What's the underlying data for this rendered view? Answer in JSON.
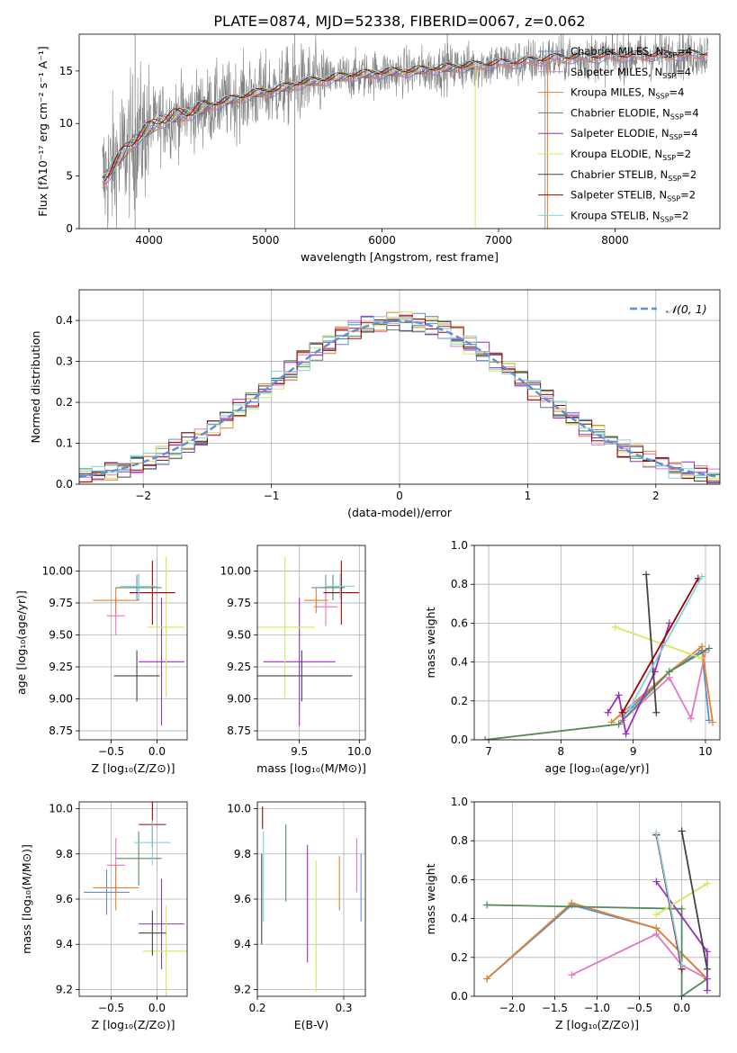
{
  "colors": {
    "Chabrier MILES": "#5f8ed6",
    "Salpeter MILES": "#e377c2",
    "Kroupa MILES": "#e0822e",
    "Chabrier ELODIE": "#548b5a",
    "Salpeter ELODIE": "#9b2fbf",
    "Kroupa ELODIE": "#d4e85a",
    "Chabrier STELIB": "#444444",
    "Salpeter STELIB": "#a00000",
    "Kroupa STELIB": "#7fd4e0",
    "data": "#808080",
    "normal": "#5f8ed6"
  },
  "chart_data": [
    {
      "id": "spectrum",
      "type": "line",
      "title": "PLATE=0874, MJD=52338, FIBERID=0067, z=0.062",
      "xlabel": "wavelength [Angstrom, rest frame]",
      "ylabel": "Flux [fλ10⁻¹⁷ erg cm⁻² s⁻¹ A⁻¹]",
      "xlim": [
        3400,
        8900
      ],
      "ylim": [
        0,
        18.5
      ],
      "xticks": [
        4000,
        5000,
        6000,
        7000,
        8000
      ],
      "yticks": [
        0,
        5,
        10,
        15
      ],
      "grid": false,
      "legend": "right",
      "continuum": {
        "x": [
          3600,
          3700,
          3800,
          3900,
          4000,
          4100,
          4200,
          4300,
          4500,
          4700,
          4900,
          5100,
          5300,
          5500,
          5700,
          6000,
          6300,
          6600,
          6900,
          7200,
          7500,
          7800,
          8100,
          8400,
          8800
        ],
        "y": [
          4.5,
          6.0,
          7.5,
          8.7,
          9.5,
          10.3,
          10.6,
          10.9,
          11.6,
          12.2,
          12.8,
          13.2,
          13.8,
          14.1,
          14.5,
          14.8,
          15.0,
          15.3,
          15.6,
          15.8,
          16.2,
          16.3,
          16.4,
          16.5,
          16.6
        ]
      },
      "series": [
        {
          "name": "Chabrier MILES",
          "nssp": "4",
          "xmax": 8800
        },
        {
          "name": "Salpeter MILES",
          "nssp": "4",
          "xmax": 8800
        },
        {
          "name": "Kroupa MILES",
          "nssp": "4",
          "xmax": 8800
        },
        {
          "name": "Chabrier ELODIE",
          "nssp": "4",
          "xmax": 6800
        },
        {
          "name": "Salpeter ELODIE",
          "nssp": "4",
          "xmax": 6800
        },
        {
          "name": "Kroupa ELODIE",
          "nssp": "2",
          "xmax": 6800
        },
        {
          "name": "Chabrier STELIB",
          "nssp": "2",
          "xmax": 8800
        },
        {
          "name": "Salpeter STELIB",
          "nssp": "2",
          "xmax": 8800
        },
        {
          "name": "Kroupa STELIB",
          "nssp": "2",
          "xmax": 8800
        }
      ]
    },
    {
      "id": "residuals",
      "type": "step",
      "xlabel": "(data-model)/error",
      "ylabel": "Normed distribution",
      "xlim": [
        -2.5,
        2.5
      ],
      "ylim": [
        0,
        0.475
      ],
      "xticks": [
        -2,
        -1,
        0,
        1,
        2
      ],
      "yticks": [
        0.0,
        0.1,
        0.2,
        0.3,
        0.4
      ],
      "grid": true,
      "legend": "top-right",
      "normal_label": "𝒩(0, 1)",
      "bin_width": 0.1
    },
    {
      "id": "age-vs-Z",
      "type": "errorbar",
      "xlabel": "Z [log₁₀(Z/Z⊙)]",
      "ylabel": "age  [log₁₀(age/yr)]",
      "xlim": [
        -0.85,
        0.33
      ],
      "ylim": [
        8.68,
        10.2
      ],
      "xticks": [
        -0.5,
        0.0
      ],
      "yticks": [
        8.75,
        9.0,
        9.25,
        9.5,
        9.75,
        10.0
      ],
      "grid": true,
      "points": [
        {
          "series": "Chabrier MILES",
          "x": -0.22,
          "xerr": 0.1,
          "y": 9.87,
          "yerr": 0.1
        },
        {
          "series": "Salpeter MILES",
          "x": -0.45,
          "xerr": 0.1,
          "y": 9.65,
          "yerr": 0.15
        },
        {
          "series": "Kroupa MILES",
          "x": -0.45,
          "xerr": 0.25,
          "y": 9.77,
          "yerr": 0.1
        },
        {
          "series": "Chabrier ELODIE",
          "x": -0.2,
          "xerr": 0.25,
          "y": 9.87,
          "yerr": 0.1
        },
        {
          "series": "Salpeter ELODIE",
          "x": 0.05,
          "xerr": 0.25,
          "y": 9.29,
          "yerr": 0.5
        },
        {
          "series": "Kroupa ELODIE",
          "x": 0.1,
          "xerr": 0.2,
          "y": 9.56,
          "yerr": 0.55
        },
        {
          "series": "Chabrier STELIB",
          "x": -0.22,
          "xerr": 0.25,
          "y": 9.18,
          "yerr": 0.2
        },
        {
          "series": "Salpeter STELIB",
          "x": -0.05,
          "xerr": 0.25,
          "y": 9.83,
          "yerr": 0.25
        },
        {
          "series": "Kroupa STELIB",
          "x": -0.2,
          "xerr": 0.2,
          "y": 9.88,
          "yerr": 0.1
        }
      ]
    },
    {
      "id": "age-vs-mass",
      "type": "errorbar",
      "xlabel": "mass [log₁₀(M/M⊙)]",
      "ylabel": "",
      "xlim": [
        9.15,
        10.05
      ],
      "ylim": [
        8.68,
        10.2
      ],
      "xticks": [
        9.5,
        10.0
      ],
      "yticks": [
        8.75,
        9.0,
        9.25,
        9.5,
        9.75,
        10.0
      ],
      "grid": true,
      "points": [
        {
          "series": "Chabrier MILES",
          "x": 9.72,
          "xerr": 0.12,
          "y": 9.87,
          "yerr": 0.1
        },
        {
          "series": "Salpeter MILES",
          "x": 9.72,
          "xerr": 0.1,
          "y": 9.72,
          "yerr": 0.15
        },
        {
          "series": "Kroupa MILES",
          "x": 9.64,
          "xerr": 0.1,
          "y": 9.77,
          "yerr": 0.1
        },
        {
          "series": "Chabrier ELODIE",
          "x": 9.78,
          "xerr": 0.1,
          "y": 9.87,
          "yerr": 0.1
        },
        {
          "series": "Salpeter ELODIE",
          "x": 9.5,
          "xerr": 0.3,
          "y": 9.29,
          "yerr": 0.5
        },
        {
          "series": "Kroupa ELODIE",
          "x": 9.38,
          "xerr": 0.25,
          "y": 9.56,
          "yerr": 0.55
        },
        {
          "series": "Chabrier STELIB",
          "x": 9.52,
          "xerr": 0.42,
          "y": 9.18,
          "yerr": 0.2
        },
        {
          "series": "Salpeter STELIB",
          "x": 9.85,
          "xerr": 0.15,
          "y": 9.83,
          "yerr": 0.25
        },
        {
          "series": "Kroupa STELIB",
          "x": 9.84,
          "xerr": 0.12,
          "y": 9.88,
          "yerr": 0.1
        }
      ]
    },
    {
      "id": "weight-vs-age",
      "type": "line",
      "xlabel": "age  [log₁₀(age/yr)]",
      "ylabel": "mass weight",
      "xlim": [
        6.8,
        10.2
      ],
      "ylim": [
        0,
        1.0
      ],
      "xticks": [
        7,
        8,
        9,
        10
      ],
      "yticks": [
        0.0,
        0.2,
        0.4,
        0.6,
        0.8,
        1.0
      ],
      "grid": true,
      "lines": [
        {
          "series": "Chabrier MILES",
          "x": [
            8.85,
            9.5,
            9.95,
            10.05
          ],
          "y": [
            0.12,
            0.35,
            0.46,
            0.1
          ]
        },
        {
          "series": "Salpeter MILES",
          "x": [
            8.85,
            9.5,
            9.8,
            10.0
          ],
          "y": [
            0.1,
            0.32,
            0.11,
            0.45
          ]
        },
        {
          "series": "Kroupa MILES",
          "x": [
            8.7,
            9.5,
            9.95,
            10.1
          ],
          "y": [
            0.09,
            0.35,
            0.48,
            0.09
          ]
        },
        {
          "series": "Chabrier ELODIE",
          "x": [
            6.95,
            8.8,
            9.5,
            10.05
          ],
          "y": [
            0.0,
            0.08,
            0.35,
            0.47
          ]
        },
        {
          "series": "Salpeter ELODIE",
          "x": [
            8.65,
            8.8,
            8.9,
            9.3,
            9.5
          ],
          "y": [
            0.14,
            0.23,
            0.03,
            0.35,
            0.6
          ]
        },
        {
          "series": "Kroupa ELODIE",
          "x": [
            8.75,
            9.95
          ],
          "y": [
            0.58,
            0.42
          ]
        },
        {
          "series": "Chabrier STELIB",
          "x": [
            9.18,
            9.32
          ],
          "y": [
            0.85,
            0.14
          ]
        },
        {
          "series": "Salpeter STELIB",
          "x": [
            8.85,
            9.9
          ],
          "y": [
            0.14,
            0.83
          ]
        },
        {
          "series": "Kroupa STELIB",
          "x": [
            8.95,
            9.95
          ],
          "y": [
            0.16,
            0.84
          ]
        }
      ]
    },
    {
      "id": "mass-vs-Z",
      "type": "errorbar",
      "xlabel": "Z [log₁₀(Z/Z⊙)]",
      "ylabel": "mass [log₁₀(M/M⊙)]",
      "xlim": [
        -0.85,
        0.33
      ],
      "ylim": [
        9.17,
        10.03
      ],
      "xticks": [
        -0.5,
        0.0
      ],
      "yticks": [
        9.2,
        9.4,
        9.6,
        9.8,
        10.0
      ],
      "grid": true,
      "points": [
        {
          "series": "Chabrier MILES",
          "x": -0.55,
          "xerr": 0.25,
          "y": 9.63,
          "yerr": 0.1
        },
        {
          "series": "Salpeter MILES",
          "x": -0.45,
          "xerr": 0.1,
          "y": 9.75,
          "yerr": 0.12
        },
        {
          "series": "Kroupa MILES",
          "x": -0.45,
          "xerr": 0.25,
          "y": 9.65,
          "yerr": 0.1
        },
        {
          "series": "Chabrier ELODIE",
          "x": -0.2,
          "xerr": 0.25,
          "y": 9.78,
          "yerr": 0.12
        },
        {
          "series": "Salpeter ELODIE",
          "x": 0.05,
          "xerr": 0.25,
          "y": 9.49,
          "yerr": 0.2
        },
        {
          "series": "Kroupa ELODIE",
          "x": 0.1,
          "xerr": 0.25,
          "y": 9.37,
          "yerr": 0.2
        },
        {
          "series": "Chabrier STELIB",
          "x": -0.05,
          "xerr": 0.15,
          "y": 9.45,
          "yerr": 0.1
        },
        {
          "series": "Salpeter STELIB",
          "x": -0.05,
          "xerr": 0.15,
          "y": 9.93,
          "yerr": 0.1
        },
        {
          "series": "Kroupa STELIB",
          "x": -0.05,
          "xerr": 0.2,
          "y": 9.85,
          "yerr": 0.1
        }
      ]
    },
    {
      "id": "mass-vs-ebv",
      "type": "errorbar",
      "xlabel": "E(B-V)",
      "ylabel": "",
      "xlim": [
        0.2,
        0.325
      ],
      "ylim": [
        9.17,
        10.03
      ],
      "xticks": [
        0.2,
        0.3
      ],
      "yticks": [
        9.2,
        9.4,
        9.6,
        9.8,
        10.0
      ],
      "grid": true,
      "points": [
        {
          "series": "Chabrier MILES",
          "x": 0.32,
          "xerr": 0,
          "y": 9.65,
          "yerr": 0.15
        },
        {
          "series": "Salpeter MILES",
          "x": 0.315,
          "xerr": 0,
          "y": 9.75,
          "yerr": 0.12
        },
        {
          "series": "Kroupa MILES",
          "x": 0.295,
          "xerr": 0,
          "y": 9.67,
          "yerr": 0.12
        },
        {
          "series": "Chabrier ELODIE",
          "x": 0.233,
          "xerr": 0,
          "y": 9.76,
          "yerr": 0.17
        },
        {
          "series": "Salpeter ELODIE",
          "x": 0.258,
          "xerr": 0,
          "y": 9.58,
          "yerr": 0.26
        },
        {
          "series": "Kroupa ELODIE",
          "x": 0.268,
          "xerr": 0,
          "y": 9.48,
          "yerr": 0.29
        },
        {
          "series": "Chabrier STELIB",
          "x": 0.205,
          "xerr": 0,
          "y": 9.6,
          "yerr": 0.2
        },
        {
          "series": "Salpeter STELIB",
          "x": 0.206,
          "xerr": 0,
          "y": 9.96,
          "yerr": 0.05
        },
        {
          "series": "Kroupa STELIB",
          "x": 0.207,
          "xerr": 0,
          "y": 9.7,
          "yerr": 0.2
        }
      ]
    },
    {
      "id": "weight-vs-Z",
      "type": "line",
      "xlabel": "Z [log₁₀(Z/Z⊙)]",
      "ylabel": "mass weight",
      "xlim": [
        -2.45,
        0.45
      ],
      "ylim": [
        0,
        1.0
      ],
      "xticks": [
        -2.0,
        -1.5,
        -1.0,
        -0.5,
        0.0
      ],
      "yticks": [
        0.0,
        0.2,
        0.4,
        0.6,
        0.8,
        1.0
      ],
      "grid": true,
      "lines": [
        {
          "series": "Chabrier MILES",
          "x": [
            -2.3,
            -1.3,
            -0.3,
            0.3
          ],
          "y": [
            0.09,
            0.47,
            0.35,
            0.09
          ]
        },
        {
          "series": "Salpeter MILES",
          "x": [
            -1.3,
            -0.3,
            0.0,
            0.3
          ],
          "y": [
            0.11,
            0.32,
            0.16,
            0.09
          ]
        },
        {
          "series": "Kroupa MILES",
          "x": [
            -2.3,
            -1.3,
            -0.3,
            0.3
          ],
          "y": [
            0.09,
            0.48,
            0.35,
            0.09
          ]
        },
        {
          "series": "Chabrier ELODIE",
          "x": [
            -2.3,
            0.0,
            0.0,
            0.3
          ],
          "y": [
            0.47,
            0.45,
            0.0,
            0.09
          ]
        },
        {
          "series": "Salpeter ELODIE",
          "x": [
            -0.3,
            0.3,
            0.3
          ],
          "y": [
            0.59,
            0.23,
            0.03
          ]
        },
        {
          "series": "Kroupa ELODIE",
          "x": [
            -0.3,
            0.3
          ],
          "y": [
            0.42,
            0.58
          ]
        },
        {
          "series": "Chabrier STELIB",
          "x": [
            0.0,
            0.3
          ],
          "y": [
            0.85,
            0.14
          ]
        },
        {
          "series": "Salpeter STELIB",
          "x": [
            -0.3,
            0.0
          ],
          "y": [
            0.83,
            0.14
          ]
        },
        {
          "series": "Kroupa STELIB",
          "x": [
            -0.3,
            0.0
          ],
          "y": [
            0.84,
            0.16
          ]
        }
      ]
    }
  ]
}
